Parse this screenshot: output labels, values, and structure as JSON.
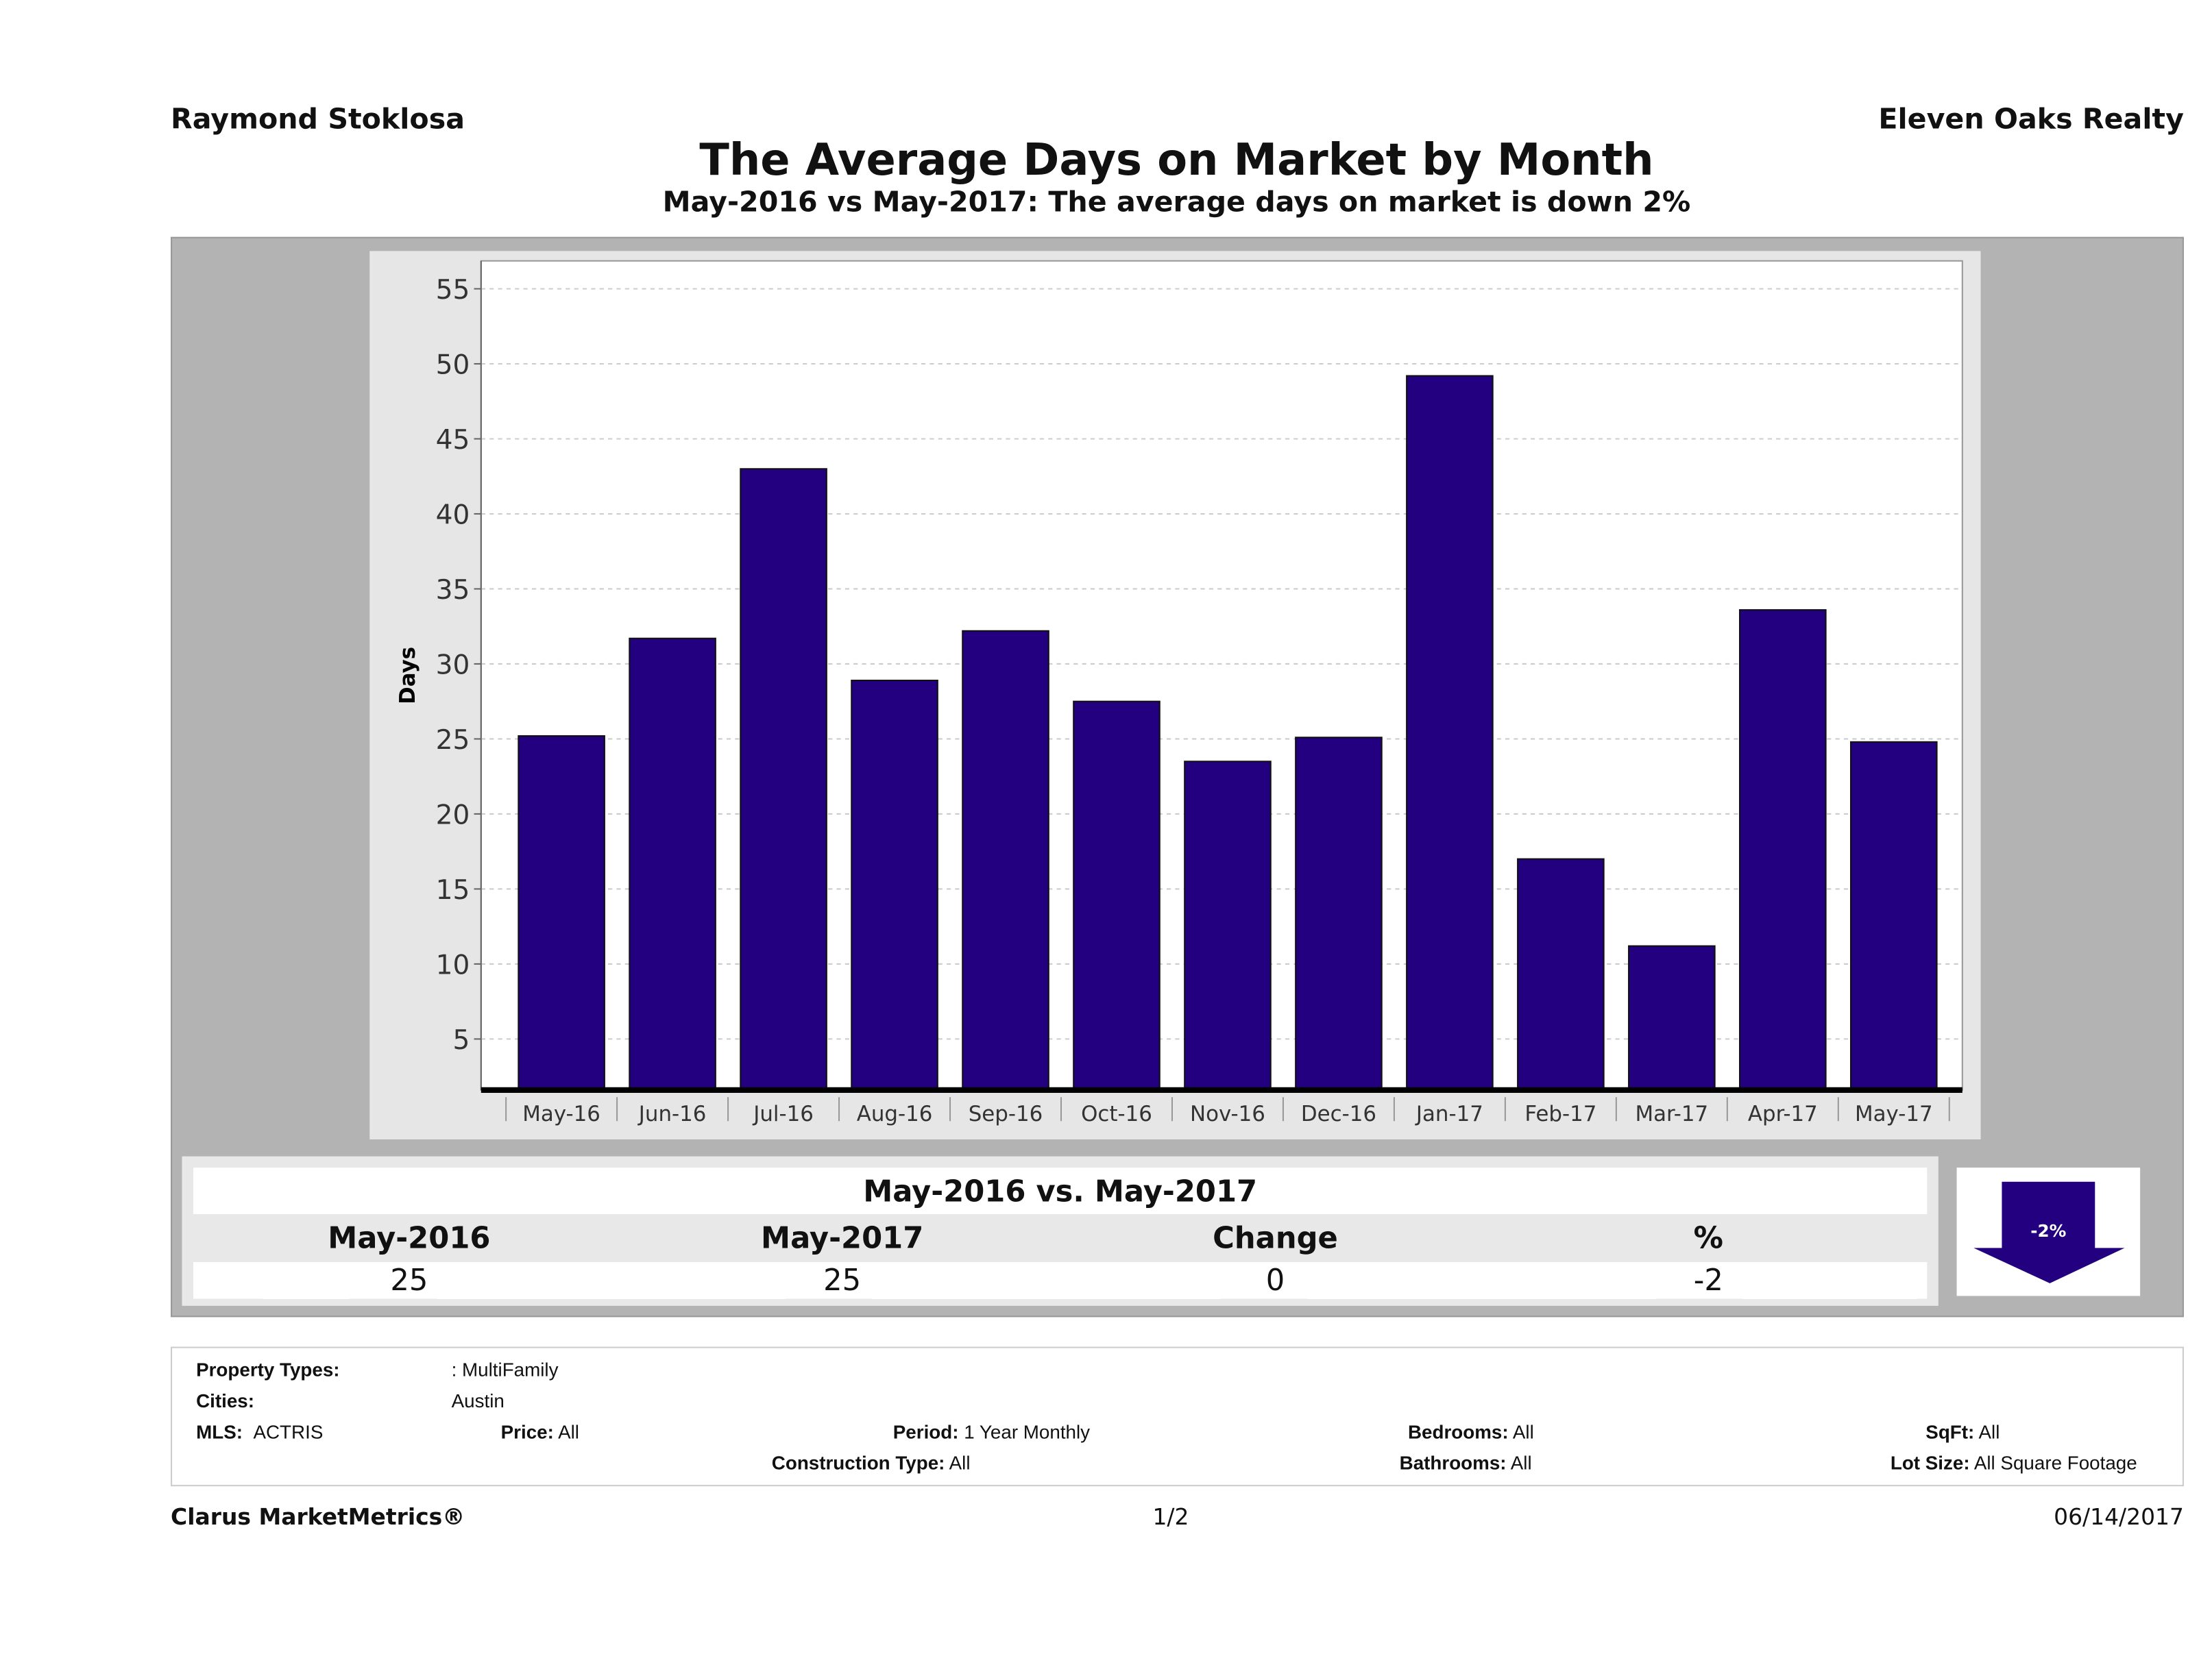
{
  "header": {
    "agent": "Raymond Stoklosa",
    "brokerage": "Eleven Oaks Realty"
  },
  "title": "The Average Days on Market by Month",
  "subtitle": "May-2016 vs May-2017: The average days on market is down 2%",
  "chart_data": {
    "type": "bar",
    "ylabel": "Days",
    "xlabel": "",
    "categories": [
      "May-16",
      "Jun-16",
      "Jul-16",
      "Aug-16",
      "Sep-16",
      "Oct-16",
      "Nov-16",
      "Dec-16",
      "Jan-17",
      "Feb-17",
      "Mar-17",
      "Apr-17",
      "May-17"
    ],
    "values": [
      25.2,
      31.7,
      43.0,
      28.9,
      32.2,
      27.5,
      23.5,
      25.1,
      49.2,
      17.0,
      11.2,
      33.6,
      24.8
    ],
    "yticks": [
      5,
      10,
      15,
      20,
      25,
      30,
      35,
      40,
      45,
      50,
      55
    ],
    "ylim": [
      1.6,
      57
    ],
    "grid": true,
    "bar_color": "#22007f"
  },
  "comparison": {
    "title": "May-2016 vs. May-2017",
    "headers": [
      "May-2016",
      "May-2017",
      "Change",
      "%"
    ],
    "values": [
      "25",
      "25",
      "0",
      "-2"
    ],
    "badge": "-2%"
  },
  "filters": {
    "property_types_label": "Property Types:",
    "property_types": ": MultiFamily",
    "cities_label": "Cities:",
    "cities": "Austin",
    "mls_label": "MLS:",
    "mls": "ACTRIS",
    "price_label": "Price:",
    "price": "All",
    "period_label": "Period:",
    "period": "1 Year Monthly",
    "construction_label": "Construction Type:",
    "construction": "All",
    "bedrooms_label": "Bedrooms:",
    "bedrooms": "All",
    "bathrooms_label": "Bathrooms:",
    "bathrooms": "All",
    "sqft_label": "SqFt:",
    "sqft": "All",
    "lot_label": "Lot Size:",
    "lot": "All Square Footage"
  },
  "footer": {
    "brand": "Clarus MarketMetrics®",
    "page": "1/2",
    "date": "06/14/2017"
  }
}
